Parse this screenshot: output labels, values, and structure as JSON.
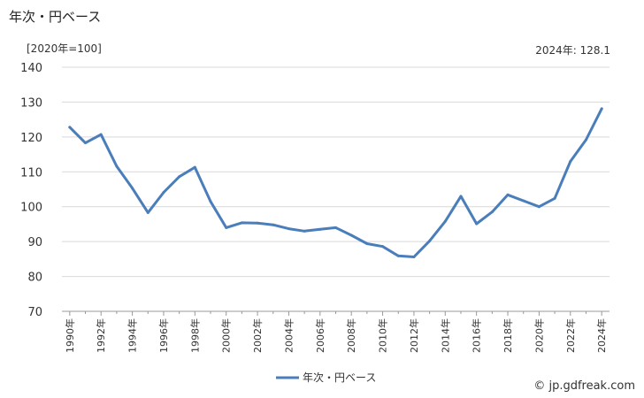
{
  "header": {
    "title": "年次・円ベース",
    "unit_label": "[2020年=100]",
    "latest_value": "2024年: 128.1"
  },
  "footer": {
    "credit": "© jp.gdfreak.com"
  },
  "colors": {
    "line": "#4a7ebb",
    "grid": "#d9d9d9",
    "axis": "#999999"
  },
  "chart_data": {
    "type": "line",
    "x": [
      1990,
      1991,
      1992,
      1993,
      1994,
      1995,
      1996,
      1997,
      1998,
      1999,
      2000,
      2001,
      2002,
      2003,
      2004,
      2005,
      2006,
      2007,
      2008,
      2009,
      2010,
      2011,
      2012,
      2013,
      2014,
      2015,
      2016,
      2017,
      2018,
      2019,
      2020,
      2021,
      2022,
      2023,
      2024
    ],
    "x_tick_labels": [
      "1990年",
      "1992年",
      "1994年",
      "1996年",
      "1998年",
      "2000年",
      "2002年",
      "2004年",
      "2006年",
      "2008年",
      "2010年",
      "2012年",
      "2014年",
      "2016年",
      "2018年",
      "2020年",
      "2022年",
      "2024年"
    ],
    "y_ticks": [
      70,
      80,
      90,
      100,
      110,
      120,
      130,
      140
    ],
    "ylim": [
      70,
      140
    ],
    "series": [
      {
        "name": "年次・円ベース",
        "values": [
          122.8,
          118.3,
          120.7,
          111.6,
          105.3,
          98.3,
          104.1,
          108.6,
          111.3,
          101.5,
          94.0,
          95.4,
          95.3,
          94.8,
          93.7,
          93.0,
          93.5,
          94.0,
          91.8,
          89.4,
          88.6,
          85.9,
          85.6,
          90.2,
          95.8,
          103.0,
          95.1,
          98.5,
          103.4,
          101.7,
          100.0,
          102.4,
          113.0,
          119.2,
          128.1
        ]
      }
    ],
    "legend_position": "bottom-center",
    "grid": true
  }
}
